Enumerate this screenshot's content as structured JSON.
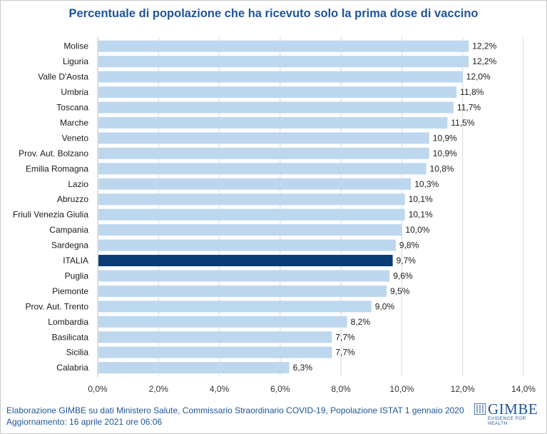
{
  "chart_data": {
    "type": "bar",
    "orientation": "horizontal",
    "title": "Percentuale di popolazione che ha ricevuto solo la prima dose di vaccino",
    "categories": [
      "Molise",
      "Liguria",
      "Valle D'Aosta",
      "Umbria",
      "Toscana",
      "Marche",
      "Veneto",
      "Prov. Aut. Bolzano",
      "Emilia Romagna",
      "Lazio",
      "Abruzzo",
      "Friuli Venezia Giulia",
      "Campania",
      "Sardegna",
      "ITALIA",
      "Puglia",
      "Piemonte",
      "Prov. Aut. Trento",
      "Lombardia",
      "Basilicata",
      "Sicilia",
      "Calabria"
    ],
    "values": [
      12.2,
      12.2,
      12.0,
      11.8,
      11.7,
      11.5,
      10.9,
      10.9,
      10.8,
      10.3,
      10.1,
      10.1,
      10.0,
      9.8,
      9.7,
      9.6,
      9.5,
      9.0,
      8.2,
      7.7,
      7.7,
      6.3
    ],
    "value_labels": [
      "12,2%",
      "12,2%",
      "12,0%",
      "11,8%",
      "11,7%",
      "11,5%",
      "10,9%",
      "10,9%",
      "10,8%",
      "10,3%",
      "10,1%",
      "10,1%",
      "10,0%",
      "9,8%",
      "9,7%",
      "9,6%",
      "9,5%",
      "9,0%",
      "8,2%",
      "7,7%",
      "7,7%",
      "6,3%"
    ],
    "highlight": "ITALIA",
    "xlim": [
      0,
      14
    ],
    "xticks": [
      0,
      2,
      4,
      6,
      8,
      10,
      12,
      14
    ],
    "xtick_labels": [
      "0,0%",
      "2,0%",
      "4,0%",
      "6,0%",
      "8,0%",
      "10,0%",
      "12,0%",
      "14,0%"
    ],
    "grid": true,
    "colors": {
      "bar": "#bdd7ee",
      "highlight": "#0b3c75",
      "title": "#1f5597",
      "footer": "#1f5597",
      "grid": "#d9d9d9"
    }
  },
  "footer": {
    "source": "Elaborazione GIMBE su dati Ministero Salute, Commissario  Straordinario COVID-19, Popolazione  ISTAT 1 gennaio 2020",
    "updated": "Aggiornamento: 16 aprile 2021 ore 06:06"
  },
  "logo": {
    "name": "GIMBE",
    "tagline": "EVIDENCE FOR HEALTH"
  }
}
